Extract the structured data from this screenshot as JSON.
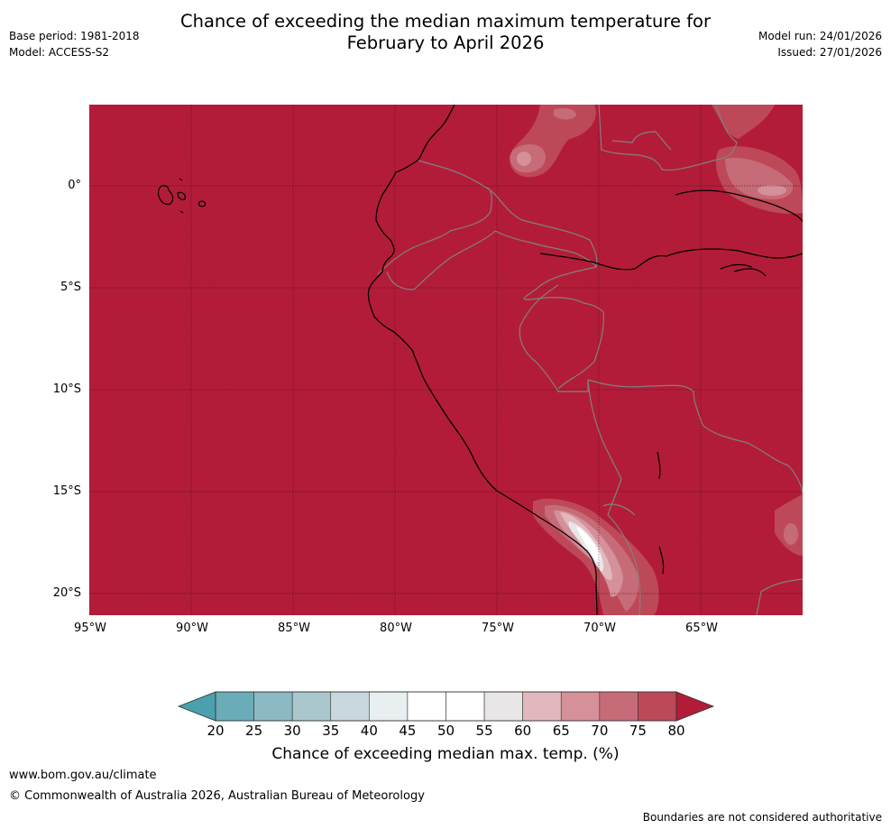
{
  "title_line1": "Chance of exceeding the median maximum temperature for",
  "title_line2": "February to April 2026",
  "meta_left": {
    "base_period": "Base period: 1981-2018",
    "model": "Model: ACCESS-S2"
  },
  "meta_right": {
    "model_run": "Model run: 24/01/2026",
    "issued": "Issued: 27/01/2026"
  },
  "map": {
    "lat_labels": [
      "0°",
      "5°S",
      "10°S",
      "15°S",
      "20°S"
    ],
    "lon_labels": [
      "95°W",
      "90°W",
      "85°W",
      "80°W",
      "75°W",
      "70°W",
      "65°W"
    ],
    "ocean_color": "#b31c38",
    "coast_color": "#000000",
    "border_color": "#808080"
  },
  "colorbar": {
    "ticks": [
      "20",
      "25",
      "30",
      "35",
      "40",
      "45",
      "50",
      "55",
      "60",
      "65",
      "70",
      "75",
      "80"
    ],
    "colors": [
      "#6aacb8",
      "#8bb9c4",
      "#a9c7cd",
      "#c8d8dd",
      "#e9eef1",
      "#ffffff",
      "#ffffff",
      "#e8e6e7",
      "#e1b8be",
      "#d5909a",
      "#c66c78",
      "#bd4958"
    ],
    "under_color": "#4aa0ad",
    "over_color": "#b31c38",
    "title": "Chance of exceeding median max. temp. (%)"
  },
  "footer": {
    "url": "www.bom.gov.au/climate",
    "copyright": "© Commonwealth of Australia 2026, Australian Bureau of Meteorology",
    "note": "Boundaries are not considered authoritative"
  }
}
